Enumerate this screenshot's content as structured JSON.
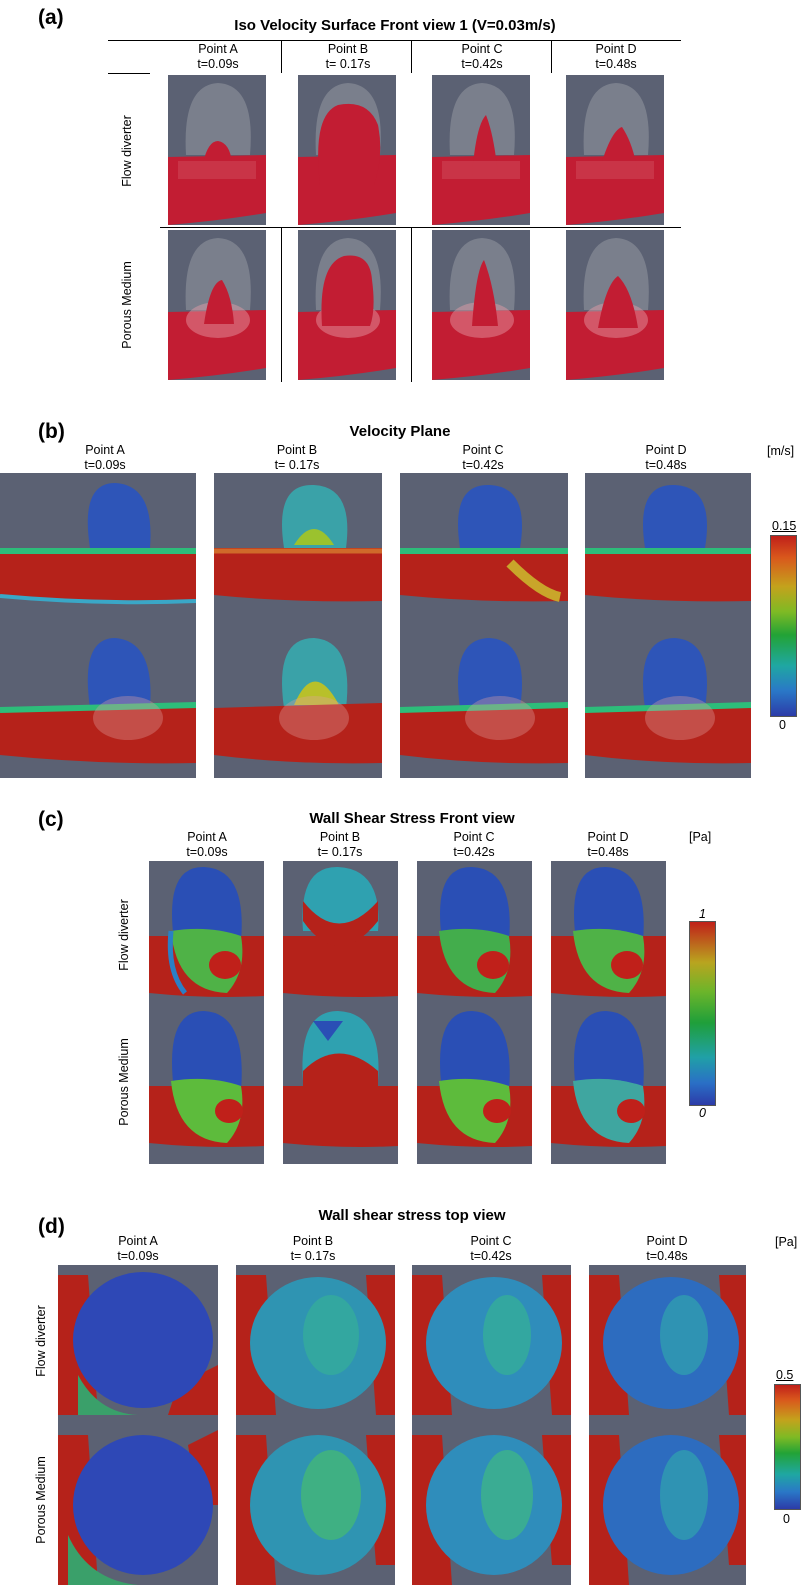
{
  "columns": [
    {
      "point": "Point A",
      "time": "t=0.09s"
    },
    {
      "point": "Point B",
      "time": "t= 0.17s"
    },
    {
      "point": "Point C",
      "time": "t=0.42s"
    },
    {
      "point": "Point D",
      "time": "t=0.48s"
    }
  ],
  "rows": [
    "Flow diverter",
    "Porous Medium"
  ],
  "panels": {
    "a": {
      "letter": "(a)",
      "title": "Iso Velocity Surface Front view 1  (V=0.03m/s)"
    },
    "b": {
      "letter": "(b)",
      "title": "Velocity Plane",
      "unit": "[m/s]",
      "scale_max": "0.15",
      "scale_min": "0"
    },
    "c": {
      "letter": "(c)",
      "title": "Wall Shear Stress Front view",
      "unit": "[Pa]",
      "scale_max": "1",
      "scale_min": "0"
    },
    "d": {
      "letter": "(d)",
      "title": "Wall shear stress top view",
      "unit": "[Pa]",
      "scale_max": "0.5",
      "scale_min": "0"
    }
  },
  "colors": {
    "background_tile": "#5b6173",
    "vessel_red": "#c0201a",
    "low_blue": "#2c3ba8"
  }
}
